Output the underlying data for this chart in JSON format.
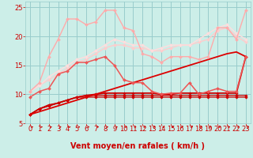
{
  "background_color": "#cceee8",
  "grid_color": "#99cccc",
  "xlabel": "Vent moyen/en rafales ( km/h )",
  "xlim": [
    -0.5,
    23.5
  ],
  "ylim": [
    5,
    26
  ],
  "yticks": [
    5,
    10,
    15,
    20,
    25
  ],
  "xticks": [
    0,
    1,
    2,
    3,
    4,
    5,
    6,
    7,
    8,
    9,
    10,
    11,
    12,
    13,
    14,
    15,
    16,
    17,
    18,
    19,
    20,
    21,
    22,
    23
  ],
  "series": [
    {
      "x": [
        0,
        1,
        2,
        3,
        4,
        5,
        6,
        7,
        8,
        9,
        10,
        11,
        12,
        13,
        14,
        15,
        16,
        17,
        18,
        19,
        20,
        21,
        22,
        23
      ],
      "y": [
        6.5,
        7.0,
        7.5,
        8.0,
        8.5,
        9.0,
        9.5,
        10.0,
        10.5,
        11.0,
        11.5,
        12.0,
        12.5,
        13.0,
        13.5,
        14.0,
        14.5,
        15.0,
        15.5,
        16.0,
        16.5,
        17.0,
        17.3,
        16.5
      ],
      "color": "#dd0000",
      "linewidth": 1.3,
      "marker": null,
      "zorder": 3
    },
    {
      "x": [
        0,
        1,
        2,
        3,
        4,
        5,
        6,
        7,
        8,
        9,
        10,
        11,
        12,
        13,
        14,
        15,
        16,
        17,
        18,
        19,
        20,
        21,
        22,
        23
      ],
      "y": [
        6.5,
        7.5,
        8.0,
        8.5,
        9.0,
        9.5,
        9.5,
        9.5,
        9.5,
        9.5,
        9.5,
        9.5,
        9.5,
        9.5,
        9.5,
        9.5,
        9.5,
        9.5,
        9.5,
        9.5,
        9.5,
        9.5,
        9.5,
        9.5
      ],
      "color": "#cc0000",
      "linewidth": 0.9,
      "marker": "D",
      "markersize": 1.8,
      "zorder": 2
    },
    {
      "x": [
        0,
        1,
        2,
        3,
        4,
        5,
        6,
        7,
        8,
        9,
        10,
        11,
        12,
        13,
        14,
        15,
        16,
        17,
        18,
        19,
        20,
        21,
        22,
        23
      ],
      "y": [
        6.5,
        7.5,
        8.2,
        8.5,
        9.0,
        9.5,
        9.8,
        9.8,
        9.8,
        9.8,
        9.8,
        9.8,
        9.8,
        9.8,
        9.8,
        9.8,
        9.8,
        9.8,
        9.8,
        9.8,
        9.8,
        9.8,
        9.8,
        9.8
      ],
      "color": "#cc0000",
      "linewidth": 0.9,
      "marker": "D",
      "markersize": 1.8,
      "zorder": 2
    },
    {
      "x": [
        0,
        1,
        2,
        3,
        4,
        5,
        6,
        7,
        8,
        9,
        10,
        11,
        12,
        13,
        14,
        15,
        16,
        17,
        18,
        19,
        20,
        21,
        22,
        23
      ],
      "y": [
        6.5,
        7.5,
        8.0,
        8.5,
        9.0,
        9.5,
        9.8,
        10.0,
        10.2,
        10.2,
        10.2,
        10.2,
        10.2,
        10.2,
        10.0,
        10.0,
        10.2,
        10.2,
        10.2,
        10.2,
        10.2,
        10.2,
        10.2,
        16.5
      ],
      "color": "#cc0000",
      "linewidth": 1.3,
      "marker": "D",
      "markersize": 1.8,
      "zorder": 2
    },
    {
      "x": [
        0,
        1,
        2,
        3,
        4,
        5,
        6,
        7,
        8,
        9,
        10,
        11,
        12,
        13,
        14,
        15,
        16,
        17,
        18,
        19,
        20,
        21,
        22,
        23
      ],
      "y": [
        9.5,
        10.5,
        11.0,
        13.5,
        14.0,
        15.5,
        15.5,
        16.0,
        16.5,
        15.0,
        12.5,
        12.0,
        12.0,
        10.5,
        10.0,
        10.2,
        10.2,
        12.0,
        10.0,
        10.5,
        11.0,
        10.5,
        10.5,
        16.5
      ],
      "color": "#ee5555",
      "linewidth": 1.1,
      "marker": "D",
      "markersize": 2.0,
      "zorder": 4
    },
    {
      "x": [
        0,
        1,
        2,
        3,
        4,
        5,
        6,
        7,
        8,
        9,
        10,
        11,
        12,
        13,
        14,
        15,
        16,
        17,
        18,
        19,
        20,
        21,
        22,
        23
      ],
      "y": [
        10.5,
        12.0,
        16.5,
        19.5,
        23.0,
        23.0,
        22.0,
        22.5,
        24.5,
        24.5,
        21.5,
        21.0,
        17.0,
        16.5,
        15.5,
        16.5,
        16.5,
        16.5,
        16.0,
        16.5,
        21.5,
        21.5,
        19.5,
        24.5
      ],
      "color": "#ffaaaa",
      "linewidth": 1.0,
      "marker": "D",
      "markersize": 2.0,
      "zorder": 4
    },
    {
      "x": [
        0,
        1,
        2,
        3,
        4,
        5,
        6,
        7,
        8,
        9,
        10,
        11,
        12,
        13,
        14,
        15,
        16,
        17,
        18,
        19,
        20,
        21,
        22,
        23
      ],
      "y": [
        10.5,
        11.5,
        12.5,
        13.5,
        14.5,
        15.5,
        16.0,
        17.0,
        18.0,
        18.5,
        18.5,
        18.0,
        18.0,
        17.5,
        17.5,
        18.0,
        18.5,
        18.5,
        19.0,
        19.5,
        21.0,
        21.5,
        20.0,
        19.0
      ],
      "color": "#ffcccc",
      "linewidth": 1.0,
      "marker": "D",
      "markersize": 2.0,
      "zorder": 3
    },
    {
      "x": [
        0,
        1,
        2,
        3,
        4,
        5,
        6,
        7,
        8,
        9,
        10,
        11,
        12,
        13,
        14,
        15,
        16,
        17,
        18,
        19,
        20,
        21,
        22,
        23
      ],
      "y": [
        10.5,
        11.5,
        13.0,
        14.0,
        15.0,
        16.0,
        16.5,
        17.5,
        18.5,
        19.5,
        19.0,
        18.5,
        18.5,
        17.5,
        18.0,
        18.5,
        18.5,
        18.5,
        19.5,
        20.5,
        21.5,
        22.0,
        20.5,
        19.5
      ],
      "color": "#ffdddd",
      "linewidth": 1.0,
      "marker": "D",
      "markersize": 2.0,
      "zorder": 3
    }
  ],
  "arrow_color": "#cc0000",
  "xlabel_color": "#cc0000",
  "xlabel_fontsize": 7,
  "tick_color": "#cc0000",
  "tick_fontsize": 6
}
